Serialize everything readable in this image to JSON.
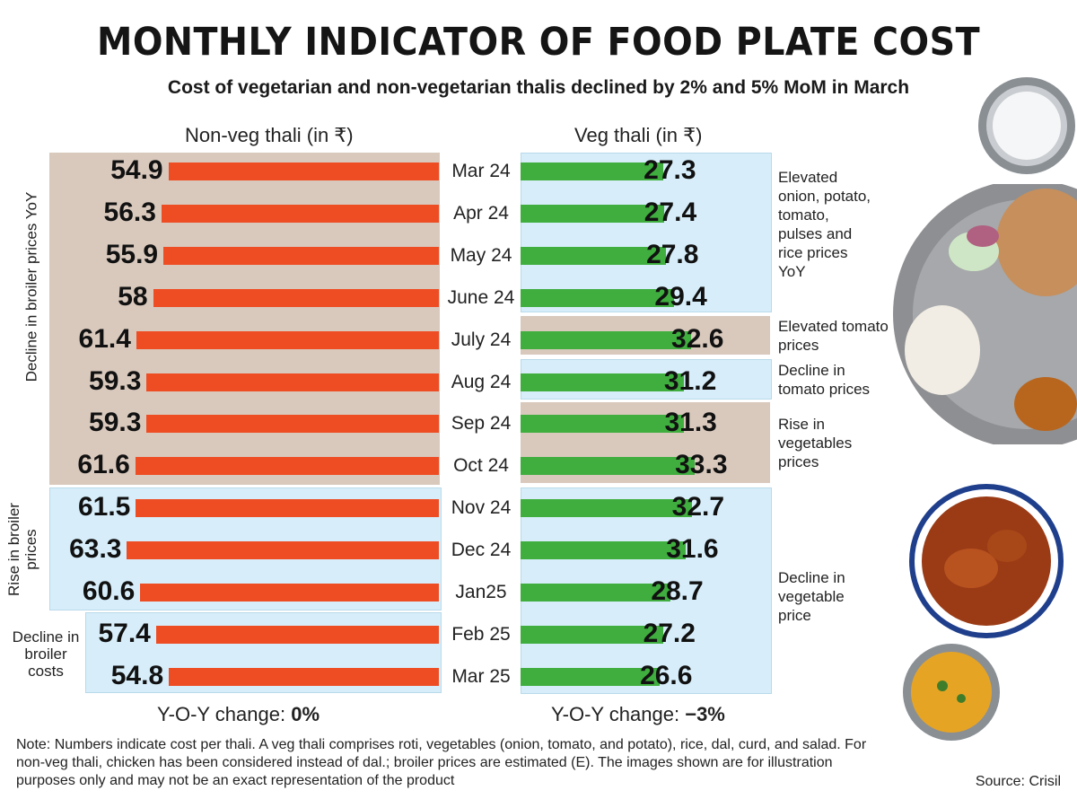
{
  "title": "MONTHLY INDICATOR OF FOOD PLATE COST",
  "subtitle": "Cost of vegetarian and non-vegetarian thalis declined by 2% and 5% MoM in March",
  "nonveg_header": "Non-veg thali (in ₹)",
  "veg_header": "Veg thali (in ₹)",
  "left_annotations": {
    "decline_yoy": "Decline in broiler prices YoY",
    "rise": "Rise in broiler prices",
    "decline_costs": "Decline in broiler costs"
  },
  "right_annotations": {
    "elevated_multi": "Elevated onion, potato, tomato, pulses and rice prices YoY",
    "elevated_tomato": "Elevated tomato prices",
    "decline_tomato": "Decline in tomato prices",
    "rise_veg": "Rise in vegetables prices",
    "decline_veg": "Decline in vegetable price"
  },
  "yoy_nonveg": {
    "label": "Y-O-Y change: ",
    "value": "0%"
  },
  "yoy_veg": {
    "label": "Y-O-Y change: ",
    "value": "−3%"
  },
  "note": "Note: Numbers indicate cost per thali. A veg thali comprises roti, vegetables (onion, tomato, and potato), rice, dal, curd, and salad. For non-veg thali, chicken has been considered instead of dal.; broiler prices are estimated (E). The images shown are for illustration purposes only and may not be an exact representation of the product",
  "source": "Source: Crisil",
  "colors": {
    "nonveg": "#ee4d24",
    "veg": "#3fae3f",
    "tan": "#d9c9bd",
    "blue": "#d7eefa"
  },
  "chart_data": {
    "type": "bar",
    "title": "MONTHLY INDICATOR OF FOOD PLATE COST",
    "categories": [
      "Mar 24",
      "Apr 24",
      "May 24",
      "June 24",
      "July 24",
      "Aug 24",
      "Sep 24",
      "Oct 24",
      "Nov 24",
      "Dec 24",
      "Jan25",
      "Feb 25",
      "Mar 25"
    ],
    "series": [
      {
        "name": "Non-veg thali (in ₹)",
        "values": [
          54.9,
          56.3,
          55.9,
          58,
          61.4,
          59.3,
          59.3,
          61.6,
          61.5,
          63.3,
          60.6,
          57.4,
          54.8
        ]
      },
      {
        "name": "Veg thali (in ₹)",
        "values": [
          27.3,
          27.4,
          27.8,
          29.4,
          32.6,
          31.2,
          31.3,
          33.3,
          32.7,
          31.6,
          28.7,
          27.2,
          26.6
        ]
      }
    ],
    "value_labels": {
      "nonveg": [
        "54.9",
        "56.3",
        "55.9",
        "58",
        "61.4",
        "59.3",
        "59.3",
        "61.6",
        "61.5",
        "63.3",
        "60.6",
        "57.4",
        "54.8"
      ],
      "veg": [
        "27.3",
        "27.4",
        "27.8",
        "29.4",
        "32.6",
        "31.2",
        "31.3",
        "33.3",
        "32.7",
        "31.6",
        "28.7",
        "27.2",
        "26.6"
      ]
    }
  }
}
